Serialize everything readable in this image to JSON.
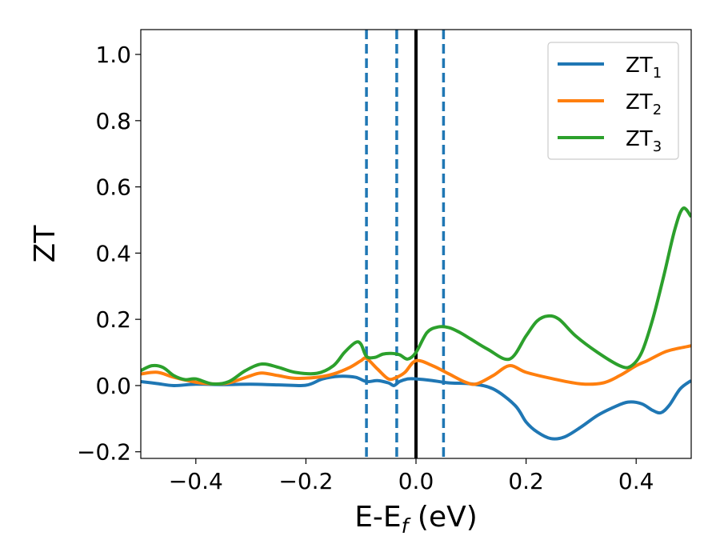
{
  "chart_data": {
    "type": "line",
    "xlabel": "E-E",
    "xlabel_sub": "f",
    "xlabel_unit": " (eV)",
    "ylabel": "ZT",
    "xlim": [
      -0.5,
      0.5
    ],
    "ylim": [
      -0.22,
      1.075
    ],
    "xticks": [
      -0.4,
      -0.2,
      0.0,
      0.2,
      0.4
    ],
    "xtick_labels": [
      "−0.4",
      "−0.2",
      "0.0",
      "0.2",
      "0.4"
    ],
    "yticks": [
      -0.2,
      0.0,
      0.2,
      0.4,
      0.6,
      0.8,
      1.0
    ],
    "ytick_labels": [
      "−0.2",
      "0.0",
      "0.2",
      "0.4",
      "0.6",
      "0.8",
      "1.0"
    ],
    "grid": false,
    "legend_position": "top-right",
    "vlines": [
      {
        "x": -0.09,
        "style": "dashed",
        "color": "#1f77b4"
      },
      {
        "x": -0.035,
        "style": "dashed",
        "color": "#1f77b4"
      },
      {
        "x": 0.0,
        "style": "solid",
        "color": "#000000"
      },
      {
        "x": 0.05,
        "style": "dashed",
        "color": "#1f77b4"
      }
    ],
    "series": [
      {
        "name": "ZT",
        "name_sub": "1",
        "color": "#1f77b4",
        "x": [
          -0.5,
          -0.47,
          -0.44,
          -0.4,
          -0.35,
          -0.3,
          -0.25,
          -0.2,
          -0.17,
          -0.14,
          -0.11,
          -0.09,
          -0.07,
          -0.05,
          -0.04,
          -0.03,
          -0.015,
          0.0,
          0.03,
          0.06,
          0.1,
          0.14,
          0.18,
          0.2,
          0.22,
          0.245,
          0.27,
          0.3,
          0.33,
          0.36,
          0.385,
          0.41,
          0.43,
          0.445,
          0.46,
          0.48,
          0.5
        ],
        "y": [
          0.012,
          0.006,
          0.0,
          0.004,
          0.003,
          0.004,
          0.002,
          0.001,
          0.02,
          0.028,
          0.025,
          0.012,
          0.015,
          0.008,
          0.0,
          0.012,
          0.02,
          0.02,
          0.015,
          0.008,
          0.005,
          -0.01,
          -0.06,
          -0.11,
          -0.14,
          -0.16,
          -0.155,
          -0.125,
          -0.09,
          -0.065,
          -0.05,
          -0.055,
          -0.075,
          -0.082,
          -0.06,
          -0.01,
          0.015
        ]
      },
      {
        "name": "ZT",
        "name_sub": "2",
        "color": "#ff7f0e",
        "x": [
          -0.5,
          -0.47,
          -0.44,
          -0.4,
          -0.37,
          -0.34,
          -0.3,
          -0.28,
          -0.25,
          -0.22,
          -0.18,
          -0.15,
          -0.12,
          -0.1,
          -0.09,
          -0.07,
          -0.05,
          -0.035,
          -0.02,
          0.0,
          0.03,
          0.06,
          0.09,
          0.11,
          0.14,
          0.17,
          0.2,
          0.25,
          0.3,
          0.34,
          0.37,
          0.4,
          0.42,
          0.45,
          0.47,
          0.5
        ],
        "y": [
          0.035,
          0.04,
          0.025,
          0.01,
          0.005,
          0.008,
          0.03,
          0.038,
          0.03,
          0.022,
          0.025,
          0.035,
          0.055,
          0.075,
          0.082,
          0.05,
          0.02,
          0.025,
          0.04,
          0.075,
          0.06,
          0.035,
          0.01,
          0.005,
          0.03,
          0.06,
          0.04,
          0.02,
          0.005,
          0.008,
          0.03,
          0.06,
          0.075,
          0.1,
          0.11,
          0.12
        ]
      },
      {
        "name": "ZT",
        "name_sub": "3",
        "color": "#2ca02c",
        "x": [
          -0.5,
          -0.48,
          -0.46,
          -0.44,
          -0.42,
          -0.4,
          -0.37,
          -0.34,
          -0.31,
          -0.28,
          -0.25,
          -0.22,
          -0.18,
          -0.15,
          -0.13,
          -0.11,
          -0.1,
          -0.09,
          -0.075,
          -0.06,
          -0.045,
          -0.03,
          -0.015,
          0.0,
          0.02,
          0.04,
          0.06,
          0.08,
          0.1,
          0.13,
          0.17,
          0.2,
          0.22,
          0.24,
          0.26,
          0.29,
          0.33,
          0.37,
          0.39,
          0.41,
          0.43,
          0.45,
          0.47,
          0.485,
          0.5
        ],
        "y": [
          0.045,
          0.06,
          0.055,
          0.03,
          0.018,
          0.02,
          0.005,
          0.012,
          0.045,
          0.065,
          0.055,
          0.04,
          0.037,
          0.06,
          0.1,
          0.13,
          0.125,
          0.088,
          0.085,
          0.095,
          0.097,
          0.093,
          0.08,
          0.1,
          0.16,
          0.177,
          0.175,
          0.16,
          0.14,
          0.11,
          0.08,
          0.15,
          0.195,
          0.21,
          0.2,
          0.15,
          0.1,
          0.06,
          0.058,
          0.1,
          0.2,
          0.33,
          0.47,
          0.535,
          0.51
        ]
      }
    ]
  }
}
